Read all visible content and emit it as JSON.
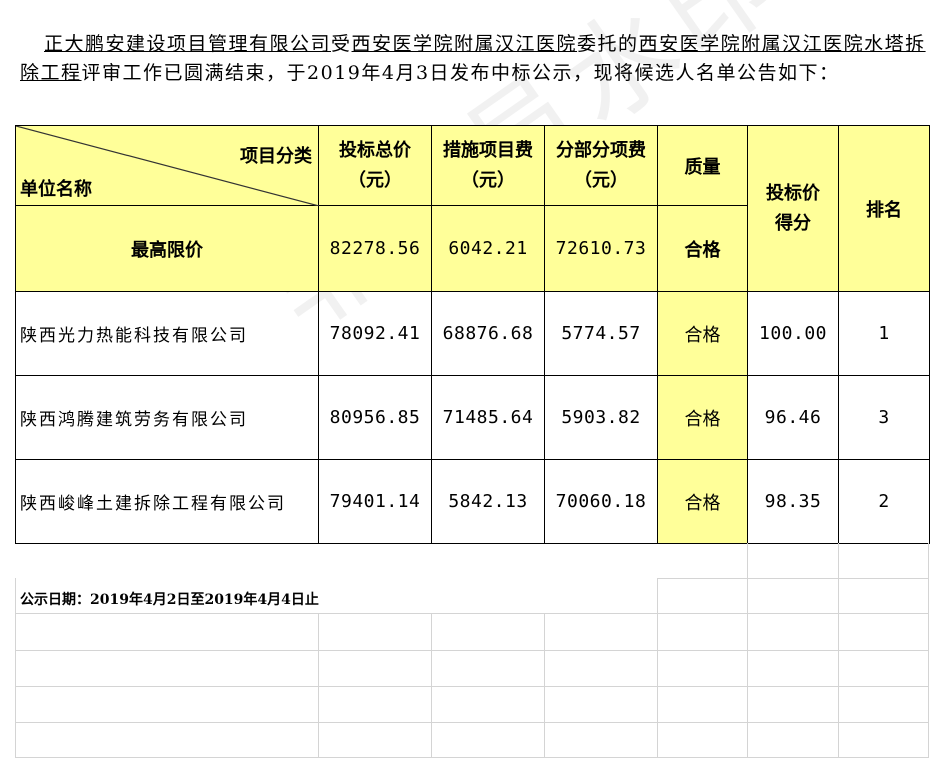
{
  "intro": {
    "part1": "正大鹏安建设项目管理有限公司",
    "part2": "受",
    "part3": "西安医学院附属汉江医院",
    "part4": "委托的",
    "part5": "西安医学院附属汉江医院水塔拆除工程",
    "part6": "评审工作已圆满结束，于2019年4月3日发布中标公示，现将候选人名单公告如下："
  },
  "table": {
    "header": {
      "category": "项目分类",
      "unit_name": "单位名称",
      "total_price": "投标总价",
      "measures_fee": "措施项目费",
      "subitem_fee": "分部分项费",
      "unit": "（元）",
      "quality": "质量",
      "score": "投标价得分",
      "rank": "排名"
    },
    "limit": {
      "label": "最高限价",
      "total_price": "82278.56",
      "measures_fee": "6042.21",
      "subitem_fee": "72610.73",
      "quality": "合格"
    },
    "rows": [
      {
        "name": "陕西光力热能科技有限公司",
        "total_price": "78092.41",
        "measures_fee": "68876.68",
        "subitem_fee": "5774.57",
        "quality": "合格",
        "score": "100.00",
        "rank": "1"
      },
      {
        "name": "陕西鸿腾建筑劳务有限公司",
        "total_price": "80956.85",
        "measures_fee": "71485.64",
        "subitem_fee": "5903.82",
        "quality": "合格",
        "score": "96.46",
        "rank": "3"
      },
      {
        "name": "陕西峻峰土建拆除工程有限公司",
        "total_price": "79401.14",
        "measures_fee": "5842.13",
        "subitem_fee": "70060.18",
        "quality": "合格",
        "score": "98.35",
        "rank": "2"
      }
    ]
  },
  "footer": {
    "date_text": "公示日期：2019年4月2日至2019年4月4日止"
  },
  "watermark": "非会员水印",
  "colors": {
    "highlight": "#ffff99",
    "grid": "#d4d4d4"
  }
}
